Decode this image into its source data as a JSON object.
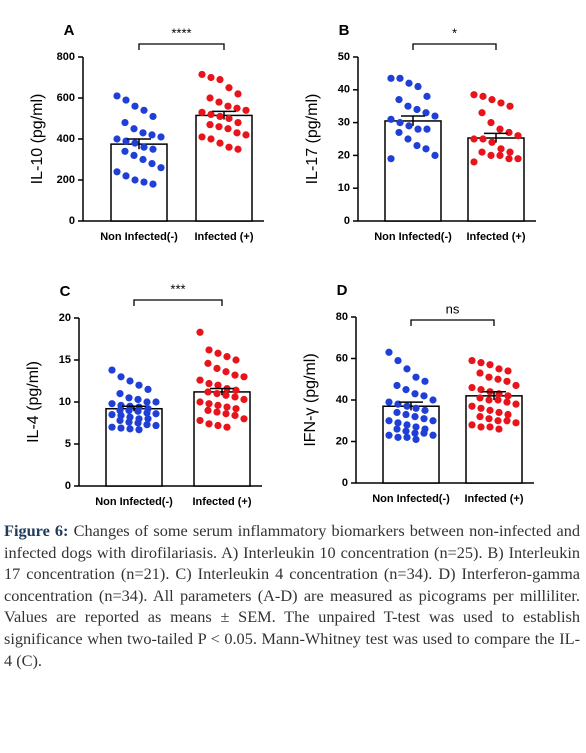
{
  "chart_data": [
    {
      "type": "bar",
      "panel": "A",
      "ylabel": "IL-10 (pg/ml)",
      "categories": [
        "Non Infected(-)",
        "Infected (+)"
      ],
      "values": [
        375,
        515
      ],
      "errors": [
        25,
        20
      ],
      "significance": "****",
      "ylim": [
        0,
        800
      ],
      "yticks": [
        0,
        200,
        400,
        600,
        800
      ],
      "bar_color": "#ffffff",
      "point_colors": [
        "#1f3fd6",
        "#e8141b"
      ],
      "points": [
        [
          610,
          590,
          560,
          540,
          510,
          480,
          450,
          430,
          420,
          410,
          400,
          390,
          380,
          360,
          350,
          340,
          320,
          300,
          280,
          260,
          240,
          220,
          200,
          190,
          180
        ],
        [
          715,
          700,
          690,
          650,
          620,
          600,
          580,
          560,
          550,
          540,
          530,
          520,
          510,
          500,
          480,
          470,
          460,
          450,
          430,
          420,
          410,
          400,
          380,
          360,
          350
        ]
      ]
    },
    {
      "type": "bar",
      "panel": "B",
      "ylabel": "IL-17 (pg/ml)",
      "categories": [
        "Non Infected(-)",
        "Infected (+)"
      ],
      "values": [
        30.5,
        25.3
      ],
      "errors": [
        1.5,
        1.4
      ],
      "significance": "*",
      "ylim": [
        0,
        50
      ],
      "yticks": [
        0,
        10,
        20,
        30,
        40,
        50
      ],
      "bar_color": "#ffffff",
      "point_colors": [
        "#1f3fd6",
        "#e8141b"
      ],
      "points": [
        [
          43.5,
          43.5,
          42,
          41,
          38,
          37,
          35,
          34,
          33,
          32,
          31,
          30,
          29,
          28,
          28,
          27,
          25,
          23,
          22,
          20,
          19
        ],
        [
          38.5,
          38,
          37,
          36,
          35,
          33,
          30,
          28,
          27,
          26,
          25,
          25,
          24,
          22,
          21,
          21,
          20,
          20,
          19,
          19,
          18
        ]
      ]
    },
    {
      "type": "bar",
      "panel": "C",
      "ylabel": "IL-4 (pg/ml)",
      "categories": [
        "Non Infected(-)",
        "Infected (+)"
      ],
      "values": [
        9.2,
        11.2
      ],
      "errors": [
        0.3,
        0.4
      ],
      "significance": "***",
      "ylim": [
        0,
        20
      ],
      "yticks": [
        0,
        5,
        10,
        15,
        20
      ],
      "bar_color": "#ffffff",
      "point_colors": [
        "#1f3fd6",
        "#e8141b"
      ],
      "points": [
        [
          13.8,
          13,
          12.5,
          12,
          11.5,
          11,
          10.5,
          10.3,
          10,
          10,
          9.8,
          9.6,
          9.5,
          9.4,
          9.2,
          9,
          9,
          8.9,
          8.7,
          8.6,
          8.5,
          8.4,
          8.2,
          8,
          8,
          7.8,
          7.6,
          7.5,
          7.3,
          7.2,
          7,
          6.9,
          6.8,
          6.7
        ],
        [
          18.3,
          16.2,
          15.8,
          15.4,
          15,
          14.6,
          14,
          13.6,
          13.2,
          13,
          12.6,
          12.2,
          12,
          11.6,
          11.4,
          11.2,
          11,
          10.8,
          10.6,
          10.3,
          10,
          9.8,
          9.6,
          9.4,
          9.2,
          9,
          8.8,
          8.6,
          8.4,
          8,
          7.8,
          7.4,
          7.2,
          7
        ]
      ]
    },
    {
      "type": "bar",
      "panel": "D",
      "ylabel": "IFN-γ (pg/ml)",
      "categories": [
        "Non Infected(-)",
        "Infected (+)"
      ],
      "values": [
        37,
        42
      ],
      "errors": [
        2,
        2
      ],
      "significance": "ns",
      "ylim": [
        0,
        80
      ],
      "yticks": [
        0,
        20,
        40,
        60,
        80
      ],
      "bar_color": "#ffffff",
      "point_colors": [
        "#1f3fd6",
        "#e8141b"
      ],
      "points": [
        [
          63,
          59,
          55,
          51,
          49,
          47,
          45,
          43,
          42,
          40,
          39,
          38,
          37,
          36,
          35,
          34,
          33,
          32,
          31,
          30,
          30,
          29,
          28,
          27,
          26,
          26,
          25,
          24,
          24,
          23,
          23,
          22,
          22,
          21
        ],
        [
          59,
          58,
          57,
          55,
          54,
          53,
          51,
          50,
          49,
          47,
          46,
          45,
          44,
          43,
          42,
          41,
          40,
          40,
          39,
          38,
          37,
          36,
          35,
          34,
          33,
          32,
          31,
          30,
          30,
          29,
          28,
          27,
          27,
          26
        ]
      ]
    }
  ],
  "caption": {
    "label": "Figure 6:",
    "text": "Changes of some serum inflammatory biomarkers between non-infected and infected dogs with dirofilariasis. A) Interleukin 10 concentration (n=25). B) Interleukin 17 concentration (n=21). C) Interleukin 4 concentration (n=34). D) Interferon-gamma concentration (n=34). All parameters (A-D) are measured as picograms per milliliter. Values are reported as means ± SEM. The unpaired T-test was used to establish significance when two-tailed P < 0.05. Mann-Whitney test was used to compare the IL-4 (C)."
  }
}
